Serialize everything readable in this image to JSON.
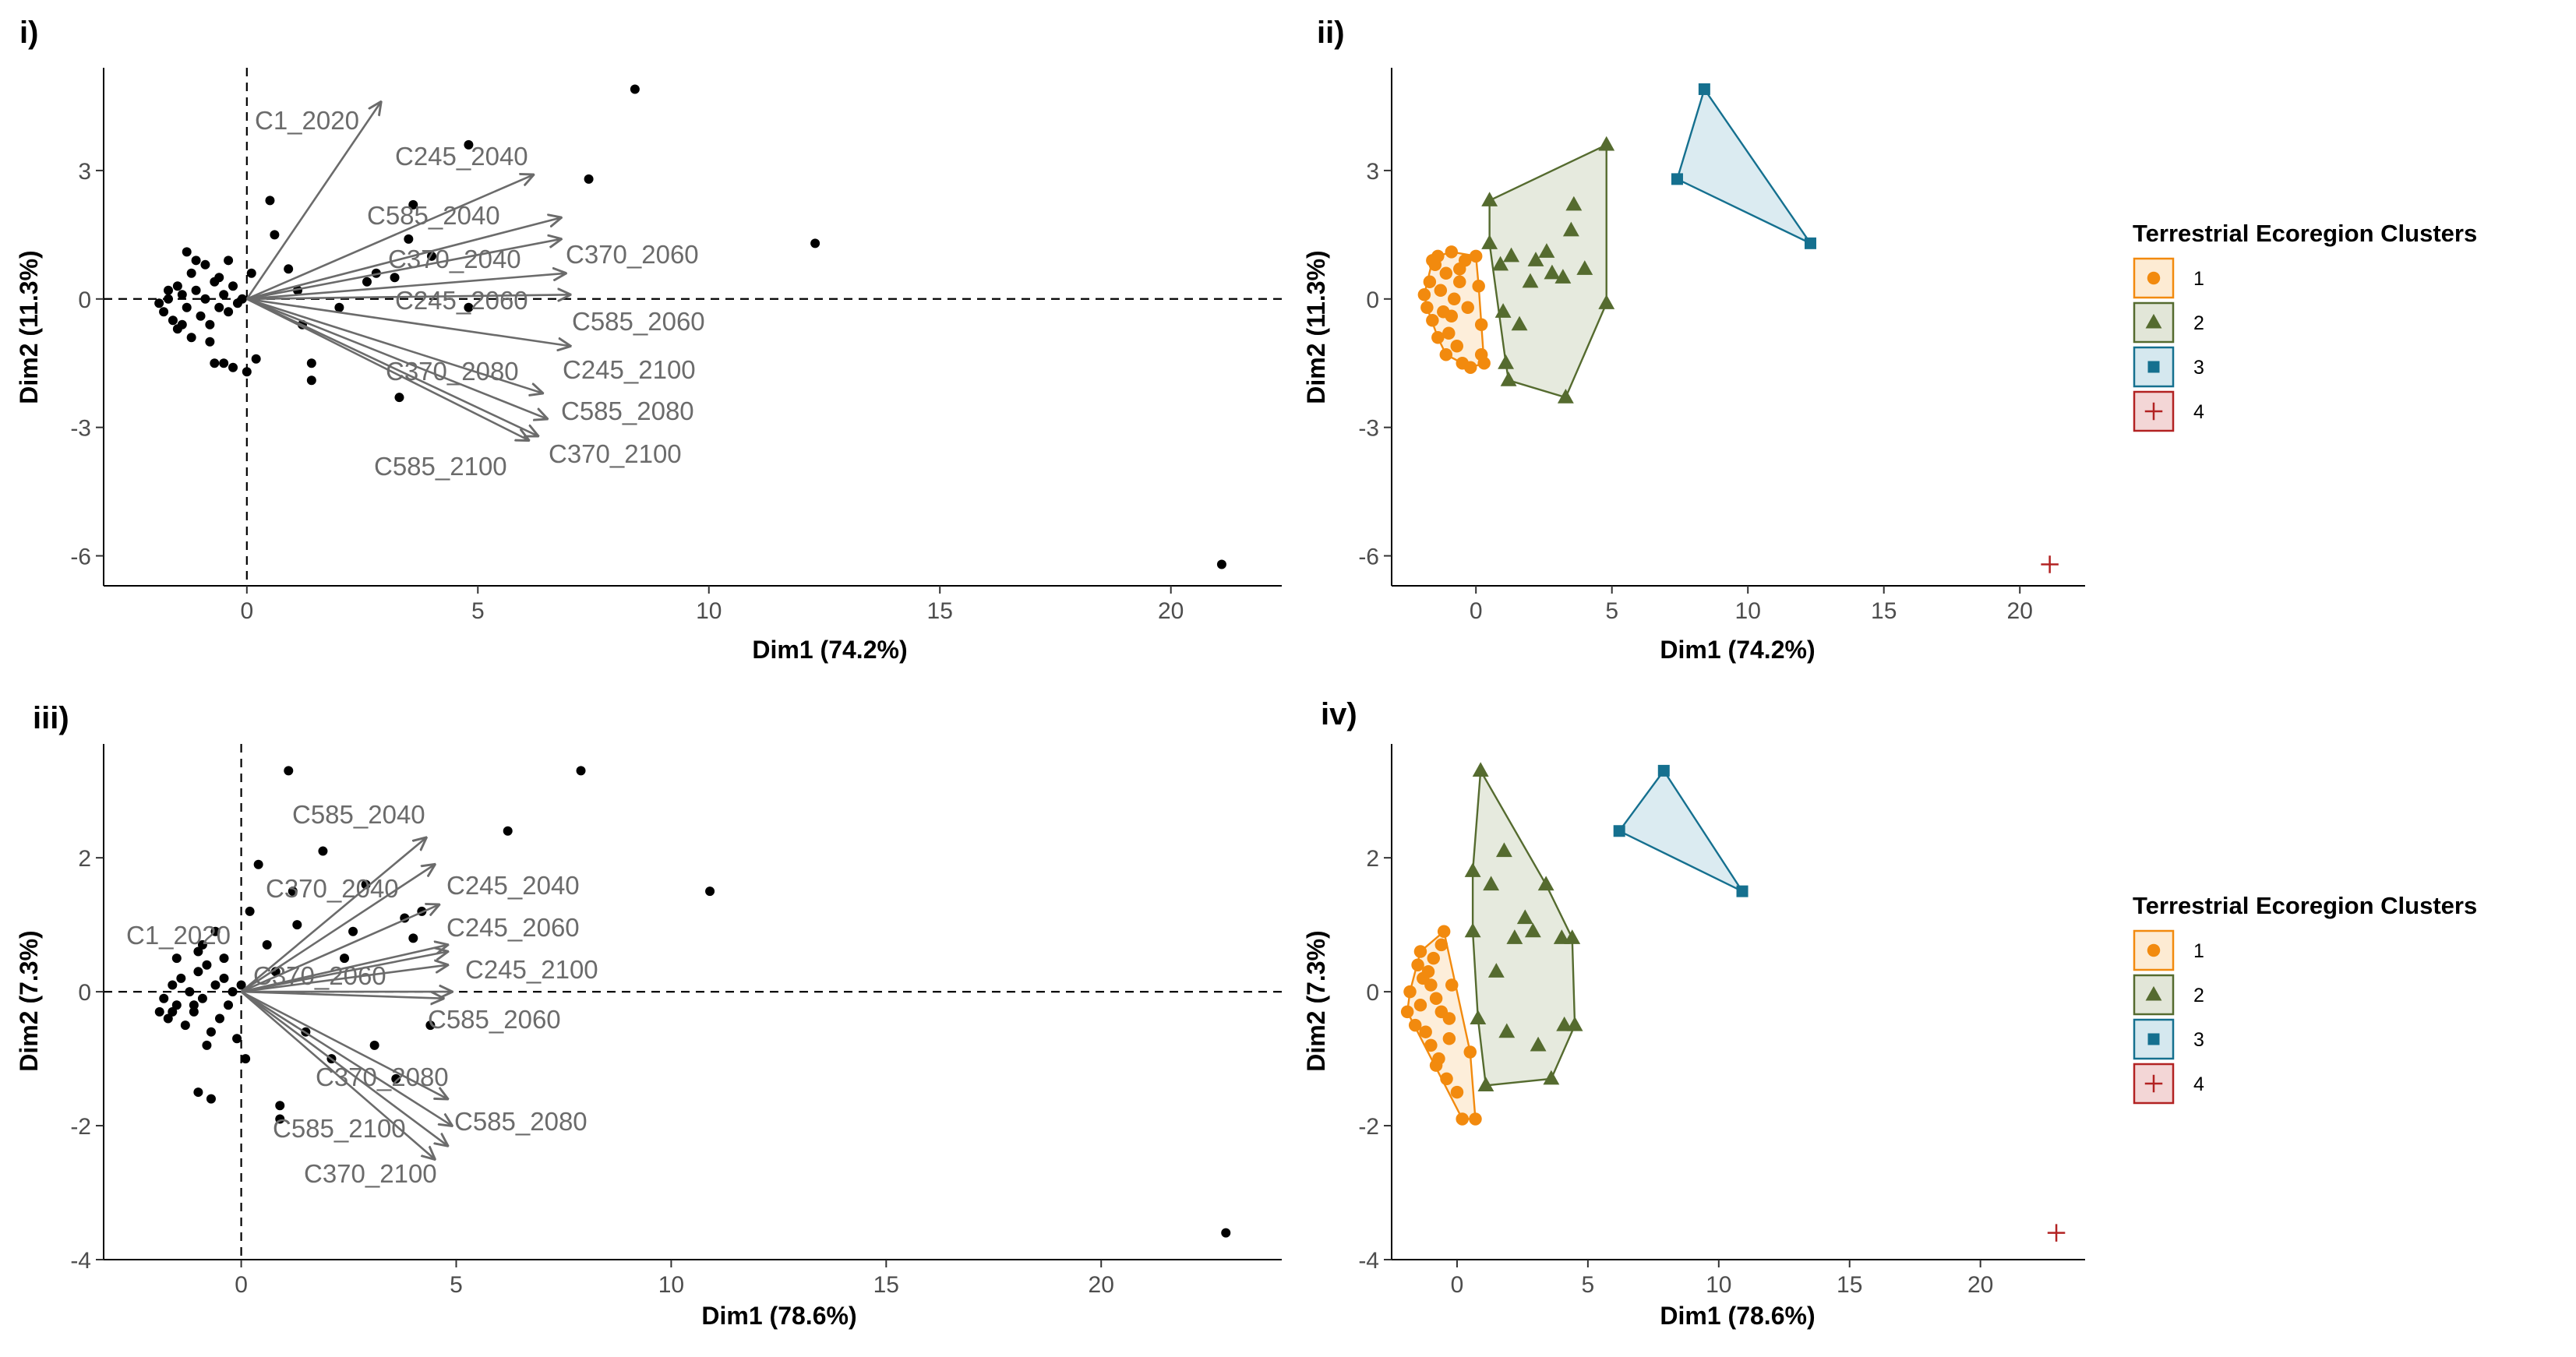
{
  "chart_data": [
    {
      "id": "i",
      "type": "scatter",
      "subtype": "pca-biplot",
      "panel_label": "i)",
      "xlabel": "Dim1 (74.2%)",
      "ylabel": "Dim2 (11.3%)",
      "xlim": [
        -3.1,
        22.4
      ],
      "ylim": [
        -6.7,
        5.4
      ],
      "xticks": [
        0,
        5,
        10,
        15,
        20
      ],
      "yticks": [
        -6,
        -3,
        0,
        3
      ],
      "xtick_labels": [
        "0",
        "5",
        "10",
        "15",
        "20"
      ],
      "ytick_labels": [
        "-6",
        "-3",
        "0",
        "3"
      ],
      "points": [
        [
          -1.9,
          -0.1
        ],
        [
          -1.8,
          -0.3
        ],
        [
          -1.7,
          0.0
        ],
        [
          -1.6,
          -0.5
        ],
        [
          -1.5,
          0.3
        ],
        [
          -1.4,
          0.1
        ],
        [
          -1.3,
          -0.2
        ],
        [
          -1.2,
          0.6
        ],
        [
          -1.2,
          -0.9
        ],
        [
          -1.1,
          0.2
        ],
        [
          -1.0,
          -0.4
        ],
        [
          -0.9,
          0.8
        ],
        [
          -0.9,
          0.0
        ],
        [
          -0.8,
          -0.6
        ],
        [
          -0.7,
          0.4
        ],
        [
          -0.6,
          -0.2
        ],
        [
          -0.5,
          0.1
        ],
        [
          -0.4,
          -0.3
        ],
        [
          -0.3,
          0.3
        ],
        [
          -0.2,
          -0.1
        ],
        [
          -1.3,
          1.1
        ],
        [
          -1.1,
          0.9
        ],
        [
          -0.8,
          -1.0
        ],
        [
          -0.7,
          -1.5
        ],
        [
          -0.5,
          -1.5
        ],
        [
          -0.1,
          0.0
        ],
        [
          0.1,
          0.6
        ],
        [
          -0.4,
          0.9
        ],
        [
          -1.5,
          -0.7
        ],
        [
          -1.7,
          0.2
        ],
        [
          -0.3,
          -1.6
        ],
        [
          0.0,
          -1.7
        ],
        [
          0.2,
          -1.4
        ],
        [
          0.5,
          2.3
        ],
        [
          0.6,
          1.5
        ],
        [
          0.9,
          0.7
        ],
        [
          1.1,
          0.2
        ],
        [
          1.2,
          -0.6
        ],
        [
          1.4,
          -1.5
        ],
        [
          1.4,
          -1.9
        ],
        [
          2.0,
          -0.2
        ],
        [
          2.6,
          0.4
        ],
        [
          2.8,
          0.6
        ],
        [
          3.2,
          0.5
        ],
        [
          3.3,
          -2.3
        ],
        [
          3.5,
          1.4
        ],
        [
          3.6,
          2.2
        ],
        [
          4.0,
          1.0
        ],
        [
          4.8,
          3.6
        ],
        [
          4.8,
          -0.2
        ],
        [
          7.4,
          2.8
        ],
        [
          8.4,
          4.9
        ],
        [
          12.3,
          1.3
        ],
        [
          21.1,
          -6.2
        ],
        [
          -0.6,
          0.5
        ],
        [
          -1.4,
          -0.6
        ]
      ],
      "arrows": [
        {
          "name": "C1_2020",
          "x": 2.9,
          "y": 4.6
        },
        {
          "name": "C245_2040",
          "x": 6.2,
          "y": 2.9
        },
        {
          "name": "C585_2040",
          "x": 6.8,
          "y": 1.9
        },
        {
          "name": "C370_2040",
          "x": 6.8,
          "y": 1.4
        },
        {
          "name": "C245_2060",
          "x": 6.9,
          "y": 0.6
        },
        {
          "name": "C585_2060",
          "x": 7.0,
          "y": 0.1
        },
        {
          "name": "C245_2100",
          "x": 7.0,
          "y": -1.1
        },
        {
          "name": "C370_2080",
          "x": 6.4,
          "y": -2.2
        },
        {
          "name": "C585_2080",
          "x": 6.5,
          "y": -2.8
        },
        {
          "name": "C370_2100",
          "x": 6.3,
          "y": -3.2
        },
        {
          "name": "C585_2100",
          "x": 6.1,
          "y": -3.3
        }
      ]
    },
    {
      "id": "ii",
      "type": "scatter",
      "subtype": "cluster-hulls",
      "panel_label": "ii)",
      "xlabel": "Dim1 (74.2%)",
      "ylabel": "Dim2 (11.3%)",
      "xlim": [
        -3.1,
        22.4
      ],
      "ylim": [
        -6.7,
        5.4
      ],
      "xticks": [
        0,
        5,
        10,
        15,
        20
      ],
      "yticks": [
        -6,
        -3,
        0,
        3
      ],
      "xtick_labels": [
        "0",
        "5",
        "10",
        "15",
        "20"
      ],
      "ytick_labels": [
        "-6",
        "-3",
        "0",
        "3"
      ],
      "clusters": [
        {
          "id": "1",
          "points": [
            [
              -1.9,
              0.1
            ],
            [
              -1.8,
              -0.2
            ],
            [
              -1.7,
              0.4
            ],
            [
              -1.6,
              -0.5
            ],
            [
              -1.5,
              0.8
            ],
            [
              -1.4,
              1.0
            ],
            [
              -1.3,
              0.2
            ],
            [
              -1.2,
              -0.3
            ],
            [
              -1.1,
              0.6
            ],
            [
              -1.0,
              -0.8
            ],
            [
              -0.9,
              1.1
            ],
            [
              -0.8,
              0.0
            ],
            [
              -0.7,
              -1.1
            ],
            [
              -0.6,
              0.4
            ],
            [
              -0.5,
              -1.5
            ],
            [
              -0.4,
              0.9
            ],
            [
              -0.3,
              -0.2
            ],
            [
              -0.2,
              -1.6
            ],
            [
              0.0,
              1.0
            ],
            [
              0.1,
              0.3
            ],
            [
              0.2,
              -0.6
            ],
            [
              0.2,
              -1.3
            ],
            [
              0.3,
              -1.5
            ],
            [
              -1.6,
              0.9
            ],
            [
              -1.1,
              -1.3
            ],
            [
              -0.6,
              0.7
            ],
            [
              -0.9,
              -0.4
            ],
            [
              -1.4,
              -0.9
            ]
          ]
        },
        {
          "id": "2",
          "points": [
            [
              0.5,
              2.3
            ],
            [
              0.5,
              1.3
            ],
            [
              0.9,
              0.8
            ],
            [
              1.0,
              -0.3
            ],
            [
              1.1,
              -1.5
            ],
            [
              1.2,
              -1.9
            ],
            [
              1.3,
              1.0
            ],
            [
              1.6,
              -0.6
            ],
            [
              2.0,
              0.4
            ],
            [
              2.2,
              0.9
            ],
            [
              2.6,
              1.1
            ],
            [
              2.8,
              0.6
            ],
            [
              3.2,
              0.5
            ],
            [
              3.5,
              1.6
            ],
            [
              3.6,
              2.2
            ],
            [
              4.0,
              0.7
            ],
            [
              3.3,
              -2.3
            ],
            [
              4.8,
              3.6
            ],
            [
              4.8,
              -0.1
            ]
          ]
        },
        {
          "id": "3",
          "points": [
            [
              7.4,
              2.8
            ],
            [
              8.4,
              4.9
            ],
            [
              12.3,
              1.3
            ]
          ]
        },
        {
          "id": "4",
          "points": [
            [
              21.1,
              -6.2
            ]
          ]
        }
      ]
    },
    {
      "id": "iii",
      "type": "scatter",
      "subtype": "pca-biplot",
      "panel_label": "iii)",
      "xlabel": "Dim1 (78.6%)",
      "ylabel": "Dim2 (7.3%)",
      "xlim": [
        -3.2,
        24.2
      ],
      "ylim": [
        -4.0,
        3.7
      ],
      "xticks": [
        0,
        5,
        10,
        15,
        20
      ],
      "yticks": [
        -4,
        -2,
        0,
        2
      ],
      "xtick_labels": [
        "0",
        "5",
        "10",
        "15",
        "20"
      ],
      "ytick_labels": [
        "-4",
        "-2",
        "0",
        "2"
      ],
      "points": [
        [
          -1.9,
          -0.3
        ],
        [
          -1.8,
          -0.1
        ],
        [
          -1.7,
          -0.4
        ],
        [
          -1.6,
          0.1
        ],
        [
          -1.5,
          -0.2
        ],
        [
          -1.4,
          0.2
        ],
        [
          -1.3,
          -0.5
        ],
        [
          -1.2,
          0.0
        ],
        [
          -1.1,
          -0.3
        ],
        [
          -1.0,
          0.3
        ],
        [
          -0.9,
          -0.1
        ],
        [
          -0.8,
          0.4
        ],
        [
          -0.7,
          -0.6
        ],
        [
          -0.6,
          0.1
        ],
        [
          -0.5,
          -0.4
        ],
        [
          -0.4,
          0.2
        ],
        [
          -0.3,
          -0.2
        ],
        [
          -0.2,
          0.0
        ],
        [
          -1.5,
          0.5
        ],
        [
          -1.0,
          0.6
        ],
        [
          -0.8,
          -0.8
        ],
        [
          -1.0,
          -1.5
        ],
        [
          -0.7,
          -1.6
        ],
        [
          -0.6,
          0.9
        ],
        [
          -0.9,
          0.7
        ],
        [
          -0.1,
          -0.7
        ],
        [
          0.1,
          -1.0
        ],
        [
          0.2,
          1.2
        ],
        [
          0.4,
          1.9
        ],
        [
          0.6,
          0.7
        ],
        [
          0.8,
          0.3
        ],
        [
          0.9,
          -1.7
        ],
        [
          0.9,
          -1.9
        ],
        [
          1.1,
          3.3
        ],
        [
          1.2,
          1.5
        ],
        [
          1.3,
          1.0
        ],
        [
          1.5,
          -0.6
        ],
        [
          1.9,
          2.1
        ],
        [
          2.1,
          -1.0
        ],
        [
          2.4,
          0.5
        ],
        [
          2.6,
          0.9
        ],
        [
          2.9,
          1.6
        ],
        [
          3.1,
          -0.8
        ],
        [
          3.6,
          -1.3
        ],
        [
          3.8,
          1.1
        ],
        [
          4.0,
          0.8
        ],
        [
          4.2,
          1.2
        ],
        [
          4.4,
          -0.5
        ],
        [
          6.2,
          2.4
        ],
        [
          7.9,
          3.3
        ],
        [
          10.9,
          1.5
        ],
        [
          22.9,
          -3.6
        ],
        [
          -1.1,
          -0.2
        ],
        [
          -0.4,
          0.5
        ],
        [
          0.0,
          0.1
        ],
        [
          -1.6,
          -0.3
        ]
      ],
      "arrows": [
        {
          "name": "C585_2040",
          "x": 4.3,
          "y": 2.3
        },
        {
          "name": "C370_2040",
          "x": 4.5,
          "y": 1.9
        },
        {
          "name": "C245_2040",
          "x": 4.6,
          "y": 1.3
        },
        {
          "name": "C1_2020",
          "x": 4.8,
          "y": 0.7
        },
        {
          "name": "C245_2060",
          "x": 4.8,
          "y": 0.6
        },
        {
          "name": "C370_2060",
          "x": 4.8,
          "y": 0.4
        },
        {
          "name": "C245_2100",
          "x": 4.9,
          "y": 0.0
        },
        {
          "name": "C585_2060",
          "x": 4.7,
          "y": -0.1
        },
        {
          "name": "C370_2080",
          "x": 4.8,
          "y": -1.6
        },
        {
          "name": "C585_2080",
          "x": 4.9,
          "y": -2.0
        },
        {
          "name": "C585_2100",
          "x": 4.8,
          "y": -2.3
        },
        {
          "name": "C370_2100",
          "x": 4.5,
          "y": -2.5
        }
      ]
    },
    {
      "id": "iv",
      "type": "scatter",
      "subtype": "cluster-hulls",
      "panel_label": "iv)",
      "xlabel": "Dim1 (78.6%)",
      "ylabel": "Dim2 (7.3%)",
      "xlim": [
        -2.5,
        24.0
      ],
      "ylim": [
        -4.0,
        3.7
      ],
      "xticks": [
        0,
        5,
        10,
        15,
        20
      ],
      "yticks": [
        -4,
        -2,
        0,
        2
      ],
      "xtick_labels": [
        "0",
        "5",
        "10",
        "15",
        "20"
      ],
      "ytick_labels": [
        "-4",
        "-2",
        "0",
        "2"
      ],
      "clusters": [
        {
          "id": "1",
          "points": [
            [
              -1.9,
              -0.3
            ],
            [
              -1.8,
              0.0
            ],
            [
              -1.6,
              -0.5
            ],
            [
              -1.5,
              0.4
            ],
            [
              -1.4,
              -0.2
            ],
            [
              -1.3,
              0.2
            ],
            [
              -1.2,
              -0.6
            ],
            [
              -1.1,
              0.3
            ],
            [
              -1.0,
              -0.8
            ],
            [
              -0.9,
              0.5
            ],
            [
              -0.8,
              -0.1
            ],
            [
              -0.7,
              -1.0
            ],
            [
              -0.6,
              0.7
            ],
            [
              -0.5,
              0.9
            ],
            [
              -0.4,
              -1.3
            ],
            [
              -0.3,
              -0.4
            ],
            [
              -0.2,
              0.1
            ],
            [
              0.0,
              -1.5
            ],
            [
              0.2,
              -1.9
            ],
            [
              0.5,
              -0.9
            ],
            [
              0.7,
              -1.9
            ],
            [
              -1.4,
              0.6
            ],
            [
              -0.8,
              -1.1
            ],
            [
              -0.3,
              -0.7
            ],
            [
              -1.0,
              0.1
            ],
            [
              -0.6,
              -0.3
            ]
          ]
        },
        {
          "id": "2",
          "points": [
            [
              0.9,
              3.3
            ],
            [
              0.6,
              1.8
            ],
            [
              0.6,
              0.9
            ],
            [
              0.8,
              -0.4
            ],
            [
              1.1,
              -1.4
            ],
            [
              1.3,
              1.6
            ],
            [
              1.5,
              0.3
            ],
            [
              1.8,
              2.1
            ],
            [
              1.9,
              -0.6
            ],
            [
              2.2,
              0.8
            ],
            [
              2.6,
              1.1
            ],
            [
              2.9,
              0.9
            ],
            [
              3.1,
              -0.8
            ],
            [
              3.4,
              1.6
            ],
            [
              3.6,
              -1.3
            ],
            [
              4.0,
              0.8
            ],
            [
              4.1,
              -0.5
            ],
            [
              4.4,
              0.8
            ],
            [
              4.5,
              -0.5
            ]
          ]
        },
        {
          "id": "3",
          "points": [
            [
              6.2,
              2.4
            ],
            [
              7.9,
              3.3
            ],
            [
              10.9,
              1.5
            ]
          ]
        },
        {
          "id": "4",
          "points": [
            [
              22.9,
              -3.6
            ]
          ]
        }
      ]
    }
  ],
  "legends": [
    {
      "title": "Terrestrial Ecoregion Clusters",
      "items": [
        {
          "label": "1",
          "color": "#F28A0E",
          "fill": "#FDEBD3",
          "shape": "circle"
        },
        {
          "label": "2",
          "color": "#556B2F",
          "fill": "#E2E6D8",
          "shape": "triangle"
        },
        {
          "label": "3",
          "color": "#15708F",
          "fill": "#D5E8EF",
          "shape": "square"
        },
        {
          "label": "4",
          "color": "#B22222",
          "fill": "#F3D6D6",
          "shape": "plus"
        }
      ]
    },
    {
      "title": "Terrestrial Ecoregion Clusters",
      "items": [
        {
          "label": "1",
          "color": "#F28A0E",
          "fill": "#FDEBD3",
          "shape": "circle"
        },
        {
          "label": "2",
          "color": "#556B2F",
          "fill": "#E2E6D8",
          "shape": "triangle"
        },
        {
          "label": "3",
          "color": "#15708F",
          "fill": "#D5E8EF",
          "shape": "square"
        },
        {
          "label": "4",
          "color": "#B22222",
          "fill": "#F3D6D6",
          "shape": "plus"
        }
      ]
    }
  ],
  "colors": {
    "point": "#000000",
    "arrow": "#6b6b6b",
    "var_label": "#6b6b6b",
    "axis": "#000000"
  }
}
